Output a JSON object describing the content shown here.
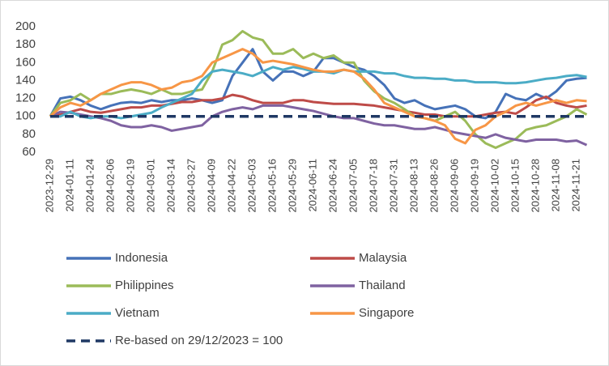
{
  "chart_data": {
    "type": "line",
    "categories": [
      "2023-12-29",
      null,
      "2024-01-11",
      null,
      "2024-01-24",
      null,
      "2024-02-06",
      null,
      "2024-02-19",
      null,
      "2024-03-01",
      null,
      "2024-03-14",
      null,
      "2024-03-27",
      null,
      "2024-04-09",
      null,
      "2024-04-22",
      null,
      "2024-05-03",
      null,
      "2024-05-16",
      null,
      "2024-05-29",
      null,
      "2024-06-11",
      null,
      "2024-06-24",
      null,
      "2024-07-05",
      null,
      "2024-07-18",
      null,
      "2024-07-31",
      null,
      "2024-08-13",
      null,
      "2024-08-26",
      null,
      "2024-09-06",
      null,
      "2024-09-19",
      null,
      "2024-10-02",
      null,
      "2024-10-15",
      null,
      "2024-10-28",
      null,
      "2024-11-08",
      null,
      "2024-11-21",
      null
    ],
    "series": [
      {
        "name": "Indonesia",
        "color": "#4672b8",
        "values": [
          100,
          120,
          122,
          118,
          112,
          108,
          112,
          115,
          116,
          115,
          118,
          116,
          118,
          118,
          120,
          118,
          115,
          118,
          145,
          160,
          175,
          150,
          140,
          150,
          150,
          145,
          150,
          165,
          165,
          160,
          155,
          152,
          145,
          135,
          120,
          115,
          118,
          112,
          108,
          110,
          112,
          108,
          100,
          98,
          105,
          125,
          120,
          118,
          125,
          120,
          128,
          140,
          142,
          143
        ]
      },
      {
        "name": "Malaysia",
        "color": "#be4b48",
        "values": [
          100,
          102,
          105,
          108,
          105,
          104,
          106,
          108,
          110,
          110,
          112,
          112,
          114,
          116,
          116,
          118,
          118,
          120,
          124,
          122,
          118,
          115,
          115,
          115,
          118,
          118,
          116,
          115,
          114,
          114,
          114,
          113,
          112,
          110,
          108,
          106,
          104,
          102,
          102,
          100,
          100,
          100,
          100,
          102,
          104,
          105,
          103,
          110,
          118,
          122,
          115,
          112,
          110,
          112
        ]
      },
      {
        "name": "Philippines",
        "color": "#9bbb59",
        "values": [
          100,
          115,
          118,
          125,
          118,
          125,
          125,
          128,
          130,
          128,
          125,
          130,
          125,
          125,
          128,
          130,
          150,
          180,
          185,
          195,
          188,
          185,
          170,
          170,
          175,
          165,
          170,
          165,
          168,
          160,
          160,
          140,
          128,
          120,
          115,
          108,
          100,
          98,
          95,
          100,
          105,
          95,
          80,
          70,
          65,
          70,
          75,
          85,
          88,
          90,
          95,
          100,
          108,
          102
        ]
      },
      {
        "name": "Thailand",
        "color": "#7f62a1",
        "values": [
          100,
          105,
          104,
          102,
          100,
          98,
          95,
          90,
          88,
          88,
          90,
          88,
          84,
          86,
          88,
          90,
          100,
          105,
          108,
          110,
          108,
          112,
          112,
          112,
          110,
          108,
          106,
          103,
          100,
          98,
          98,
          95,
          92,
          90,
          90,
          88,
          86,
          86,
          88,
          85,
          82,
          80,
          78,
          76,
          80,
          76,
          74,
          72,
          74,
          74,
          74,
          72,
          73,
          68
        ]
      },
      {
        "name": "Vietnam",
        "color": "#4bacc6",
        "values": [
          100,
          100,
          105,
          100,
          98,
          100,
          100,
          98,
          100,
          102,
          104,
          110,
          115,
          120,
          125,
          140,
          150,
          152,
          150,
          148,
          145,
          150,
          155,
          152,
          155,
          153,
          150,
          150,
          148,
          152,
          150,
          150,
          150,
          148,
          148,
          145,
          143,
          143,
          142,
          142,
          140,
          140,
          138,
          138,
          138,
          137,
          137,
          138,
          140,
          142,
          143,
          145,
          146,
          144
        ]
      },
      {
        "name": "Singapore",
        "color": "#f79646",
        "values": [
          100,
          110,
          115,
          112,
          118,
          125,
          130,
          135,
          138,
          138,
          135,
          130,
          132,
          138,
          140,
          145,
          160,
          165,
          170,
          175,
          170,
          160,
          162,
          160,
          158,
          155,
          152,
          150,
          150,
          152,
          150,
          142,
          130,
          115,
          110,
          105,
          100,
          98,
          95,
          90,
          75,
          70,
          85,
          90,
          100,
          105,
          112,
          115,
          112,
          115,
          118,
          115,
          118,
          117
        ]
      }
    ],
    "reference_line": {
      "label": "Re-based on 29/12/2023 = 100",
      "value": 100,
      "color": "#1f3864",
      "dashed": true
    },
    "ylim": [
      60,
      200
    ],
    "yticks": [
      60,
      80,
      100,
      120,
      140,
      160,
      180,
      200
    ],
    "grid": false,
    "legend": "bottom"
  }
}
